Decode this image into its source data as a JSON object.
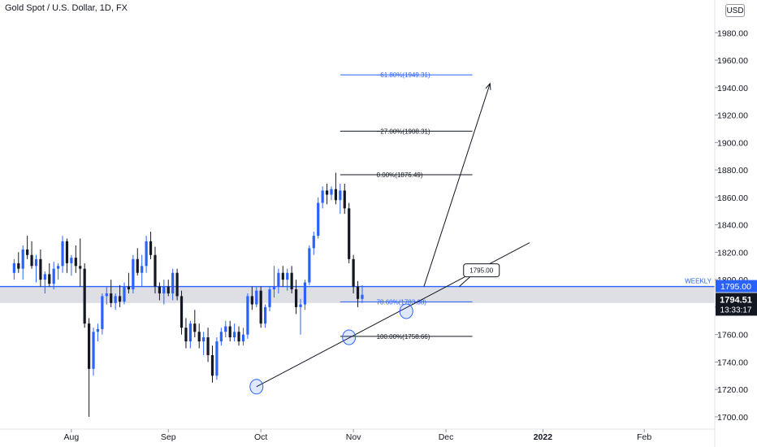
{
  "header": {
    "title": "Gold Spot / U.S. Dollar, 1D, FX",
    "currency": "USD"
  },
  "colors": {
    "up": "#2962ff",
    "down": "#131722",
    "fib_blue": "#2962ff",
    "fib_black": "#131722",
    "zone": "#d1d4dc"
  },
  "chart_data": {
    "type": "candlestick",
    "title": "Gold Spot / U.S. Dollar, 1D, FX",
    "ylim": [
      1697,
      1995
    ],
    "y_ticks": [
      1700,
      1720,
      1740,
      1760,
      1780,
      1800,
      1820,
      1840,
      1860,
      1880,
      1900,
      1920,
      1940,
      1960,
      1980
    ],
    "y_tick_labels": [
      "1700.00",
      "1720.00",
      "1740.00",
      "1760.00",
      "1780.00",
      "1800.00",
      "1820.00",
      "1840.00",
      "1860.00",
      "1880.00",
      "1900.00",
      "1920.00",
      "1940.00",
      "1960.00",
      "1980.00"
    ],
    "x_labels": [
      {
        "label": "Aug",
        "index": 13
      },
      {
        "label": "Sep",
        "index": 35
      },
      {
        "label": "Oct",
        "index": 56
      },
      {
        "label": "Nov",
        "index": 77
      },
      {
        "label": "Dec",
        "index": 98
      },
      {
        "label": "2022",
        "index": 120
      },
      {
        "label": "Feb",
        "index": 143
      }
    ],
    "x_range": [
      -3.2,
      159
    ],
    "candles": [
      [
        1805,
        1815,
        1800,
        1812
      ],
      [
        1812,
        1820,
        1805,
        1808
      ],
      [
        1808,
        1825,
        1800,
        1822
      ],
      [
        1822,
        1832,
        1815,
        1818
      ],
      [
        1818,
        1828,
        1808,
        1810
      ],
      [
        1810,
        1818,
        1798,
        1815
      ],
      [
        1815,
        1822,
        1795,
        1800
      ],
      [
        1800,
        1806,
        1790,
        1804
      ],
      [
        1804,
        1812,
        1795,
        1797
      ],
      [
        1797,
        1813,
        1793,
        1808
      ],
      [
        1808,
        1812,
        1800,
        1810
      ],
      [
        1810,
        1832,
        1805,
        1828
      ],
      [
        1828,
        1830,
        1805,
        1812
      ],
      [
        1812,
        1818,
        1803,
        1816
      ],
      [
        1816,
        1825,
        1805,
        1810
      ],
      [
        1810,
        1830,
        1795,
        1808
      ],
      [
        1808,
        1812,
        1765,
        1768
      ],
      [
        1768,
        1772,
        1700,
        1735
      ],
      [
        1735,
        1765,
        1730,
        1762
      ],
      [
        1762,
        1768,
        1755,
        1764
      ],
      [
        1764,
        1790,
        1760,
        1788
      ],
      [
        1788,
        1795,
        1782,
        1790
      ],
      [
        1790,
        1800,
        1780,
        1783
      ],
      [
        1783,
        1790,
        1778,
        1788
      ],
      [
        1788,
        1796,
        1780,
        1784
      ],
      [
        1784,
        1798,
        1782,
        1795
      ],
      [
        1795,
        1805,
        1790,
        1793
      ],
      [
        1793,
        1818,
        1790,
        1815
      ],
      [
        1815,
        1823,
        1803,
        1805
      ],
      [
        1805,
        1818,
        1795,
        1810
      ],
      [
        1810,
        1832,
        1805,
        1828
      ],
      [
        1828,
        1835,
        1815,
        1818
      ],
      [
        1818,
        1824,
        1790,
        1795
      ],
      [
        1795,
        1798,
        1785,
        1790
      ],
      [
        1790,
        1800,
        1782,
        1795
      ],
      [
        1795,
        1800,
        1788,
        1790
      ],
      [
        1790,
        1808,
        1785,
        1805
      ],
      [
        1805,
        1808,
        1785,
        1788
      ],
      [
        1788,
        1792,
        1760,
        1765
      ],
      [
        1765,
        1772,
        1750,
        1755
      ],
      [
        1755,
        1770,
        1750,
        1768
      ],
      [
        1768,
        1778,
        1758,
        1762
      ],
      [
        1762,
        1768,
        1750,
        1755
      ],
      [
        1755,
        1762,
        1745,
        1758
      ],
      [
        1758,
        1765,
        1740,
        1745
      ],
      [
        1745,
        1752,
        1725,
        1730
      ],
      [
        1730,
        1758,
        1727,
        1755
      ],
      [
        1755,
        1765,
        1752,
        1762
      ],
      [
        1762,
        1770,
        1758,
        1766
      ],
      [
        1766,
        1770,
        1755,
        1758
      ],
      [
        1758,
        1768,
        1755,
        1762
      ],
      [
        1762,
        1766,
        1752,
        1755
      ],
      [
        1755,
        1765,
        1752,
        1760
      ],
      [
        1760,
        1790,
        1757,
        1788
      ],
      [
        1788,
        1795,
        1778,
        1782
      ],
      [
        1782,
        1795,
        1780,
        1792
      ],
      [
        1792,
        1795,
        1765,
        1768
      ],
      [
        1768,
        1782,
        1765,
        1780
      ],
      [
        1780,
        1795,
        1777,
        1793
      ],
      [
        1793,
        1810,
        1787,
        1795
      ],
      [
        1795,
        1808,
        1790,
        1805
      ],
      [
        1805,
        1810,
        1795,
        1800
      ],
      [
        1800,
        1808,
        1792,
        1805
      ],
      [
        1805,
        1810,
        1790,
        1793
      ],
      [
        1793,
        1800,
        1775,
        1780
      ],
      [
        1780,
        1786,
        1760,
        1782
      ],
      [
        1782,
        1800,
        1778,
        1798
      ],
      [
        1798,
        1825,
        1796,
        1823
      ],
      [
        1823,
        1835,
        1818,
        1832
      ],
      [
        1832,
        1860,
        1830,
        1856
      ],
      [
        1856,
        1868,
        1852,
        1865
      ],
      [
        1865,
        1870,
        1855,
        1862
      ],
      [
        1862,
        1868,
        1858,
        1866
      ],
      [
        1866,
        1878,
        1855,
        1858
      ],
      [
        1858,
        1870,
        1848,
        1865
      ],
      [
        1865,
        1870,
        1848,
        1852
      ],
      [
        1852,
        1856,
        1812,
        1815
      ],
      [
        1815,
        1818,
        1790,
        1795
      ],
      [
        1795,
        1799,
        1780,
        1786
      ],
      [
        1786,
        1796,
        1783,
        1789
      ]
    ],
    "fibonacci": [
      {
        "label": "−61.80%(1949.31)",
        "price": 1949.31,
        "color": "blue"
      },
      {
        "label": "−27.00%(1908.31)",
        "price": 1908.31,
        "color": "black"
      },
      {
        "label": "0.00%(1876.49)",
        "price": 1876.49,
        "color": "black"
      },
      {
        "label": "78.60%(1783.88)",
        "price": 1783.88,
        "color": "blue"
      },
      {
        "label": "100.00%(1758.66)",
        "price": 1758.66,
        "color": "black"
      }
    ],
    "weekly_level": {
      "label": "WEEKLY",
      "price": 1795
    },
    "zone": {
      "from": 1783,
      "to": 1795
    },
    "callout": {
      "label": "1795.00",
      "price": 1795
    },
    "price_marker": {
      "label": "1795.00",
      "price": 1795
    },
    "current_price": {
      "label": "1794.51",
      "countdown": "13:33:17",
      "price": 1794.51
    }
  }
}
